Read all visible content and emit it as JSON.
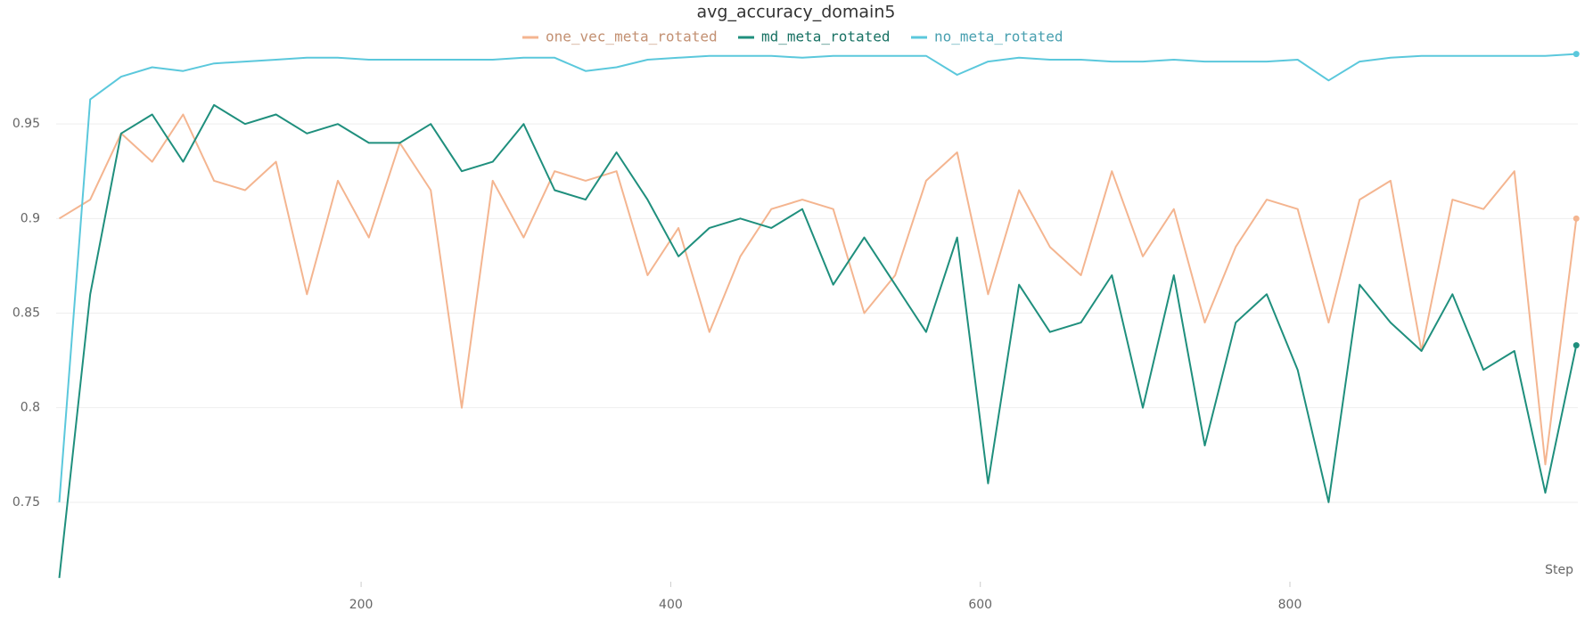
{
  "chart_data": {
    "type": "line",
    "title": "avg_accuracy_domain5",
    "x_label": "Step",
    "x": [
      5,
      25,
      45,
      65,
      85,
      105,
      125,
      145,
      165,
      185,
      205,
      225,
      245,
      265,
      285,
      305,
      325,
      345,
      365,
      385,
      405,
      425,
      445,
      465,
      485,
      505,
      525,
      545,
      565,
      585,
      605,
      625,
      645,
      665,
      685,
      705,
      725,
      745,
      765,
      785,
      805,
      825,
      845,
      865,
      885,
      905,
      925,
      945,
      965,
      985
    ],
    "series": [
      {
        "name": "one_vec_meta_rotated",
        "color": "#f4b590",
        "values": [
          0.9,
          0.91,
          0.945,
          0.93,
          0.955,
          0.92,
          0.915,
          0.93,
          0.86,
          0.92,
          0.89,
          0.94,
          0.915,
          0.8,
          0.92,
          0.89,
          0.925,
          0.92,
          0.925,
          0.87,
          0.895,
          0.84,
          0.88,
          0.905,
          0.91,
          0.905,
          0.85,
          0.87,
          0.92,
          0.935,
          0.86,
          0.915,
          0.885,
          0.87,
          0.925,
          0.88,
          0.905,
          0.845,
          0.885,
          0.91,
          0.905,
          0.845,
          0.91,
          0.92,
          0.83,
          0.91,
          0.905,
          0.925,
          0.77,
          0.9
        ]
      },
      {
        "name": "md_meta_rotated",
        "color": "#1f8f7d",
        "values": [
          0.71,
          0.86,
          0.945,
          0.955,
          0.93,
          0.96,
          0.95,
          0.955,
          0.945,
          0.95,
          0.94,
          0.94,
          0.95,
          0.925,
          0.93,
          0.95,
          0.915,
          0.91,
          0.935,
          0.91,
          0.88,
          0.895,
          0.9,
          0.895,
          0.905,
          0.865,
          0.89,
          0.865,
          0.84,
          0.89,
          0.76,
          0.865,
          0.84,
          0.845,
          0.87,
          0.8,
          0.87,
          0.78,
          0.845,
          0.86,
          0.82,
          0.75,
          0.865,
          0.845,
          0.83,
          0.86,
          0.82,
          0.83,
          0.755,
          0.833
        ]
      },
      {
        "name": "no_meta_rotated",
        "color": "#5bc8dc",
        "values": [
          0.75,
          0.963,
          0.975,
          0.98,
          0.978,
          0.982,
          0.983,
          0.984,
          0.985,
          0.985,
          0.984,
          0.984,
          0.984,
          0.984,
          0.984,
          0.985,
          0.985,
          0.978,
          0.98,
          0.984,
          0.985,
          0.986,
          0.986,
          0.986,
          0.985,
          0.986,
          0.986,
          0.986,
          0.986,
          0.976,
          0.983,
          0.985,
          0.984,
          0.984,
          0.983,
          0.983,
          0.984,
          0.983,
          0.983,
          0.983,
          0.984,
          0.973,
          0.983,
          0.985,
          0.986,
          0.986,
          0.986,
          0.986,
          0.986,
          0.987
        ]
      }
    ],
    "xlim": [
      3,
      986
    ],
    "ylim": [
      0.708,
      1.0
    ],
    "xticks": [
      200,
      400,
      600,
      800
    ],
    "yticks": [
      0.75,
      0.8,
      0.85,
      0.9,
      0.95
    ],
    "grid": true
  }
}
